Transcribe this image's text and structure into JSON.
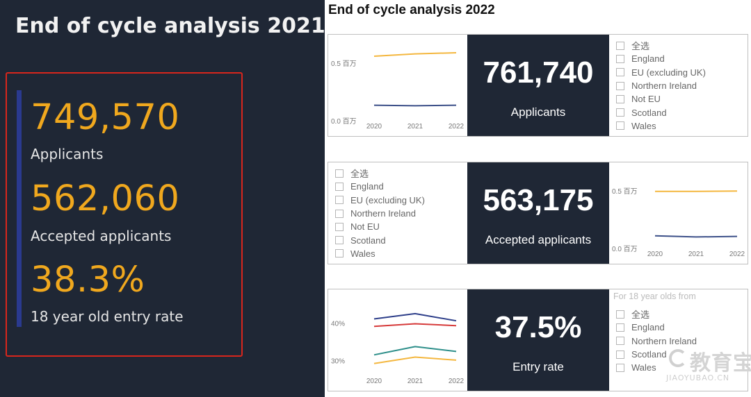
{
  "left_panel": {
    "title": "End of cycle analysis 2021",
    "metrics": [
      {
        "value": "749,570",
        "label": "Applicants"
      },
      {
        "value": "562,060",
        "label": "Accepted applicants"
      },
      {
        "value": "38.3%",
        "label": "18 year old entry rate"
      }
    ],
    "colors": {
      "background": "#1f2735",
      "value": "#f0a81e",
      "highlight_border": "#d8261c",
      "accent_bar": "#2a3a8f"
    }
  },
  "right_panel": {
    "title": "End of cycle analysis 2022",
    "cards": [
      {
        "kpi_value": "761,740",
        "kpi_label": "Applicants",
        "filter_heading": "",
        "filters": [
          "全选",
          "England",
          "EU (excluding UK)",
          "Northern Ireland",
          "Not EU",
          "Scotland",
          "Wales"
        ]
      },
      {
        "kpi_value": "563,175",
        "kpi_label": "Accepted applicants",
        "filter_heading": "",
        "filters": [
          "全选",
          "England",
          "EU (excluding UK)",
          "Northern Ireland",
          "Not EU",
          "Scotland",
          "Wales"
        ]
      },
      {
        "kpi_value": "37.5%",
        "kpi_label": "Entry rate",
        "filter_heading": "For 18 year olds from",
        "filters": [
          "全选",
          "England",
          "Northern Ireland",
          "Scotland",
          "Wales"
        ]
      }
    ],
    "colors": {
      "kpi_background": "#1f2735"
    }
  },
  "chart_data": [
    {
      "type": "line",
      "x": [
        "2020",
        "2021",
        "2022"
      ],
      "ylim": [
        0,
        0.65
      ],
      "yticks": [
        {
          "value": 0.0,
          "label": "0.0 百万"
        },
        {
          "value": 0.5,
          "label": "0.5 百万"
        }
      ],
      "grid": false,
      "series": [
        {
          "values": [
            0.56,
            0.58,
            0.59
          ],
          "color": "#f4b73f"
        },
        {
          "values": [
            0.135,
            0.13,
            0.135
          ],
          "color": "#3b4f88"
        }
      ]
    },
    {
      "type": "line",
      "x": [
        "2020",
        "2021",
        "2022"
      ],
      "ylim": [
        0,
        0.65
      ],
      "yticks": [
        {
          "value": 0.0,
          "label": "0.0 百万"
        },
        {
          "value": 0.5,
          "label": "0.5 百万"
        }
      ],
      "grid": false,
      "series": [
        {
          "values": [
            0.495,
            0.495,
            0.498
          ],
          "color": "#f4b73f"
        },
        {
          "values": [
            0.11,
            0.1,
            0.105
          ],
          "color": "#3b4f88"
        }
      ]
    },
    {
      "type": "line",
      "x": [
        "2020",
        "2021",
        "2022"
      ],
      "ylim": [
        26,
        46
      ],
      "yticks": [
        {
          "value": 30,
          "label": "30%"
        },
        {
          "value": 40,
          "label": "40%"
        }
      ],
      "grid": false,
      "series": [
        {
          "values": [
            41.1,
            42.5,
            40.6
          ],
          "color": "#2e3f8a"
        },
        {
          "values": [
            39.1,
            39.8,
            39.3
          ],
          "color": "#d63a3a"
        },
        {
          "values": [
            31.5,
            33.7,
            32.4
          ],
          "color": "#2e8f8a"
        },
        {
          "values": [
            29.2,
            30.9,
            30.1
          ],
          "color": "#f4b73f"
        }
      ]
    }
  ],
  "watermark": {
    "text": "教育宝",
    "subtext": "JIAOYUBAO.CN"
  }
}
